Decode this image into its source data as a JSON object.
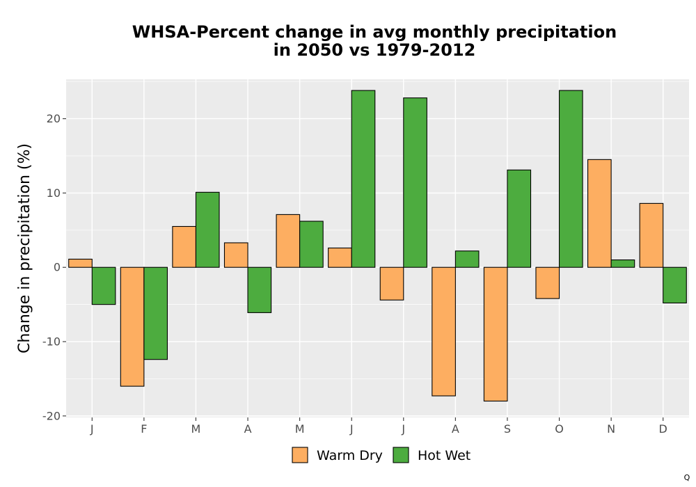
{
  "chart_data": {
    "type": "bar",
    "title": "WHSA-Percent change in avg monthly precipitation\nin 2050 vs 1979-2012",
    "xlabel": "",
    "ylabel": "Change in precipitation (%)",
    "categories": [
      "J",
      "F",
      "M",
      "A",
      "M",
      "J",
      "J",
      "A",
      "S",
      "O",
      "N",
      "D"
    ],
    "series": [
      {
        "name": "Warm Dry",
        "color": "#FDAE61",
        "values": [
          1.1,
          -16.0,
          5.5,
          3.3,
          7.1,
          2.6,
          -4.4,
          -17.3,
          -18.0,
          -4.2,
          14.5,
          8.6
        ]
      },
      {
        "name": "Hot Wet",
        "color": "#4DAC3F",
        "values": [
          -5.0,
          -12.4,
          10.1,
          -6.1,
          6.2,
          23.8,
          22.8,
          2.2,
          13.1,
          23.8,
          1.0,
          -4.8
        ]
      }
    ],
    "ylim": [
      -20.2,
      25.3
    ],
    "yticks": [
      -20,
      -10,
      0,
      10,
      20
    ],
    "ytick_labels": [
      "-20",
      "-10",
      "0",
      "10",
      "20"
    ],
    "grid": true,
    "legend_position": "bottom",
    "panel_background": "#EBEBEB",
    "bar_outline_color": "#000000"
  },
  "corner_mark": "Q"
}
